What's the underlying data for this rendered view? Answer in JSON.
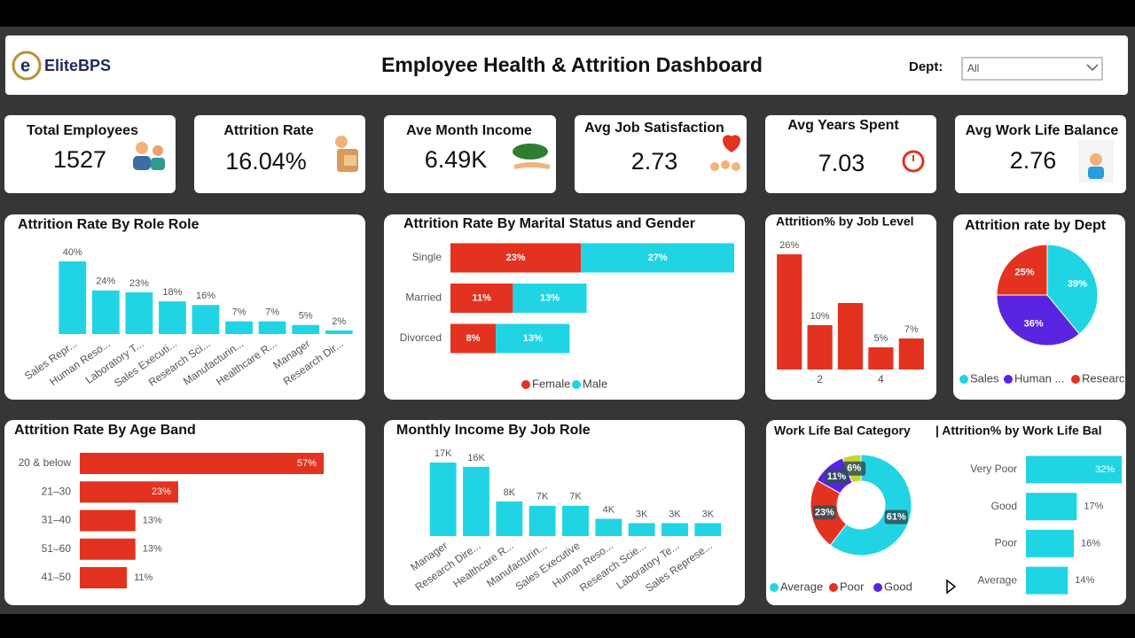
{
  "header": {
    "logo": "EliteBPS",
    "title": "Employee Health & Attrition Dashboard",
    "filter_label": "Dept:",
    "filter_value": "All"
  },
  "kpis": [
    {
      "label": "Total Employees",
      "value": "1527"
    },
    {
      "label": "Attrition Rate",
      "value": "16.04%"
    },
    {
      "label": "Ave Month Income",
      "value": "6.49K"
    },
    {
      "label": "Avg Job Satisfaction",
      "value": "2.73"
    },
    {
      "label": "Avg Years Spent",
      "value": "7.03"
    },
    {
      "label": "Avg Work Life Balance",
      "value": "2.76"
    }
  ],
  "chart_data": [
    {
      "type": "bar",
      "title": "Attrition Rate By Role Role",
      "categories": [
        "Sales Repr...",
        "Human Reso...",
        "Laboratory T...",
        "Sales Executi...",
        "Research Sci...",
        "Manufacturin...",
        "Healthcare R...",
        "Manager",
        "Research Dir..."
      ],
      "values": [
        40,
        24,
        23,
        18,
        16,
        7,
        7,
        5,
        2
      ],
      "value_labels": [
        "40%",
        "24%",
        "23%",
        "18%",
        "16%",
        "7%",
        "7%",
        "5%",
        "2%"
      ],
      "color": "#21d4e4"
    },
    {
      "type": "stacked-hbar",
      "title": "Attrition Rate By Marital Status and Gender",
      "categories": [
        "Single",
        "Married",
        "Divorced"
      ],
      "series": [
        {
          "name": "Female",
          "color": "#e3321f",
          "values": [
            23,
            11,
            8
          ],
          "value_labels": [
            "23%",
            "11%",
            "8%"
          ]
        },
        {
          "name": "Male",
          "color": "#21d4e4",
          "values": [
            27,
            13,
            13
          ],
          "value_labels": [
            "27%",
            "13%",
            "13%"
          ]
        }
      ]
    },
    {
      "type": "bar",
      "title": "Attrition% by Job Level",
      "categories": [
        null,
        "2",
        null,
        "4",
        null
      ],
      "values": [
        26,
        10,
        15,
        5,
        7
      ],
      "value_labels": [
        "26%",
        "10%",
        null,
        "5%",
        "7%"
      ],
      "color": "#e3321f"
    },
    {
      "type": "pie",
      "title": "Attrition rate by Dept",
      "categories": [
        "Sales",
        "Human ...",
        "Researc..."
      ],
      "values": [
        39,
        36,
        25
      ],
      "value_labels": [
        "39%",
        "36%",
        "25%"
      ],
      "colors": [
        "#21d4e4",
        "#5a23e0",
        "#e3321f"
      ]
    },
    {
      "type": "hbar",
      "title": "Attrition Rate By Age Band",
      "categories": [
        "20 & below",
        "21–30",
        "31–40",
        "51–60",
        "41–50"
      ],
      "values": [
        57,
        23,
        13,
        13,
        11
      ],
      "value_labels": [
        "57%",
        "23%",
        "13%",
        "13%",
        "11%"
      ],
      "color": "#e3321f"
    },
    {
      "type": "bar",
      "title": "Monthly Income By Job Role",
      "categories": [
        "Manager",
        "Research Dire...",
        "Healthcare R...",
        "Manufacturin...",
        "Sales Executive",
        "Human Reso...",
        "Research Scie...",
        "Laboratory Te...",
        "Sales Represe..."
      ],
      "values": [
        17000,
        16000,
        8000,
        7000,
        7000,
        4000,
        3000,
        3000,
        3000
      ],
      "value_labels": [
        "17K",
        "16K",
        "8K",
        "7K",
        "7K",
        "4K",
        "3K",
        "3K",
        "3K"
      ],
      "color": "#21d4e4"
    },
    {
      "type": "donut",
      "title": "Work Life Bal Category",
      "categories": [
        "Average",
        "Poor",
        "Good",
        null
      ],
      "values": [
        61,
        23,
        11,
        6
      ],
      "value_labels": [
        "61%",
        "23%",
        "11%",
        "6%"
      ],
      "colors": [
        "#21d4e4",
        "#e3321f",
        "#5a23e0",
        "#c5d52c"
      ]
    },
    {
      "type": "hbar",
      "title": "| Attrition% by Work Life Bal",
      "categories": [
        "Very Poor",
        "Good",
        "Poor",
        "Average"
      ],
      "values": [
        32,
        17,
        16,
        14
      ],
      "value_labels": [
        "32%",
        "17%",
        "16%",
        "14%"
      ],
      "color": "#21d4e4"
    }
  ]
}
